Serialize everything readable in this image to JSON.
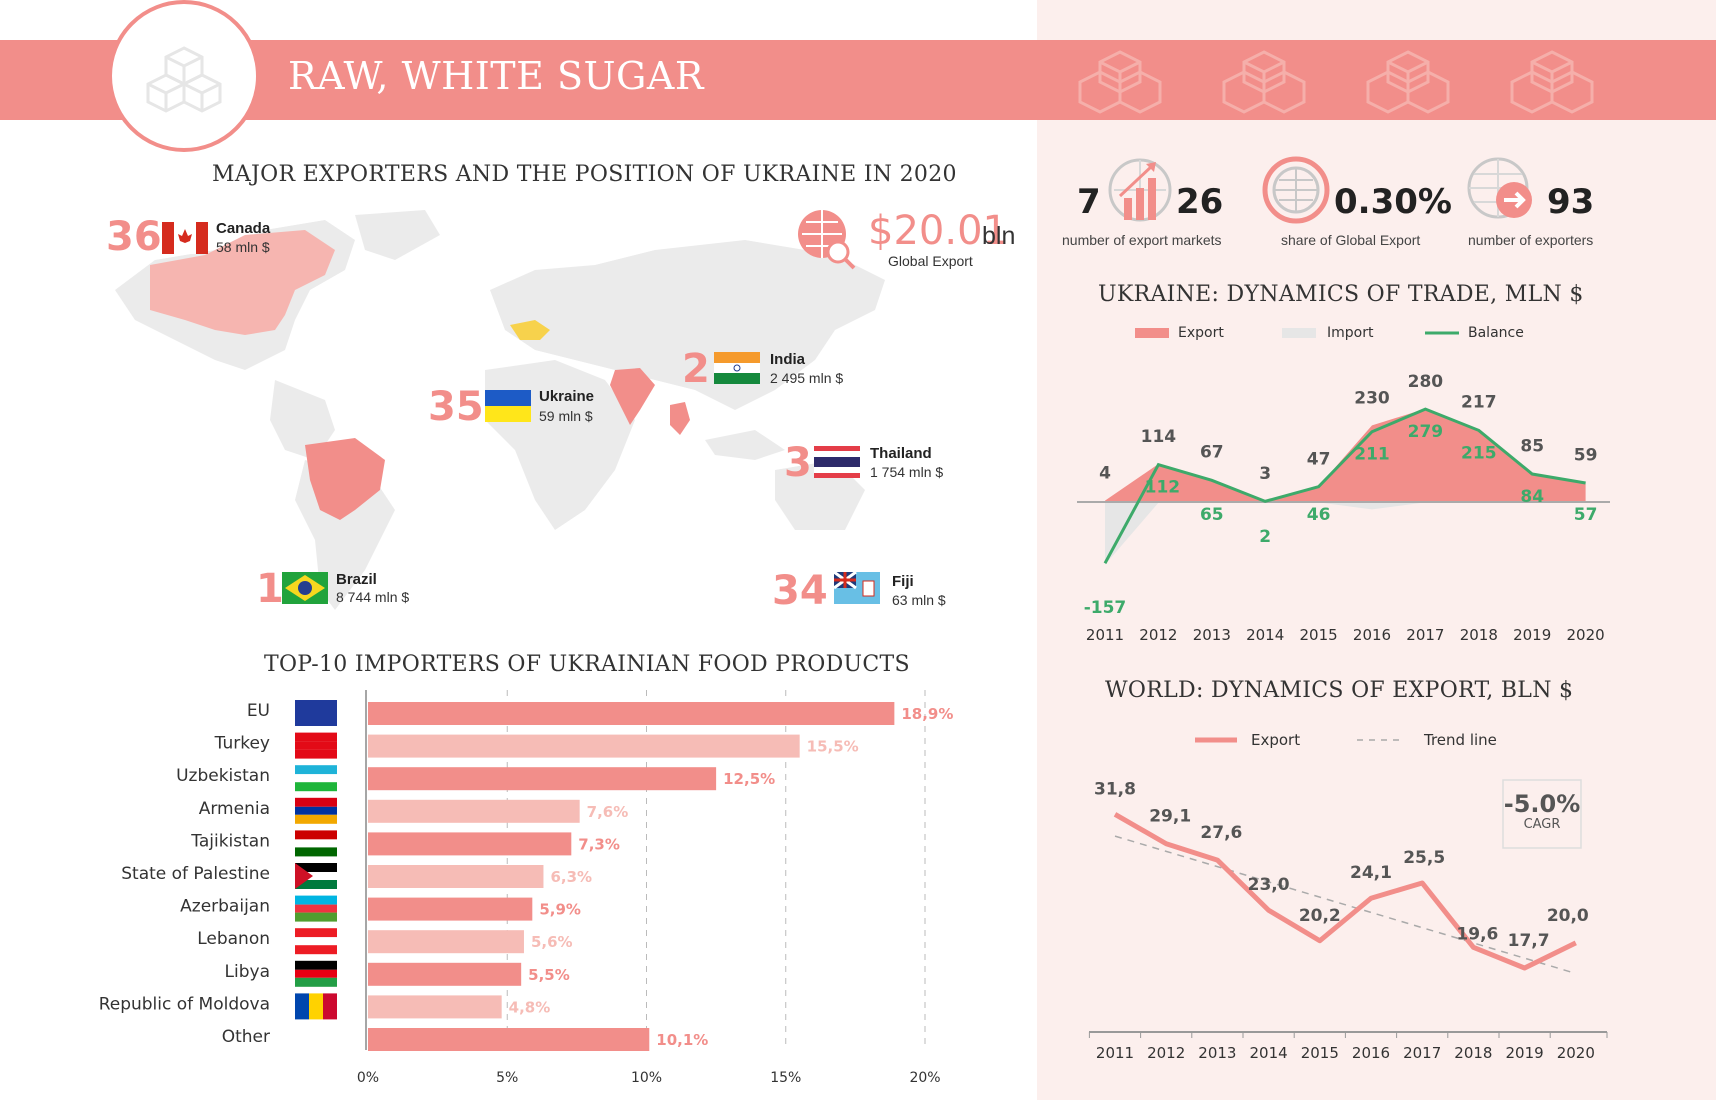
{
  "title": "RAW, WHITE SUGAR",
  "map_section": {
    "title": "MAJOR EXPORTERS AND THE POSITION OF UKRAINE IN 2020",
    "global_export_value": "$20.01",
    "global_export_unit": "bln",
    "global_export_label": "Global Export",
    "countries": [
      {
        "rank": "36",
        "name": "Canada",
        "value": "58  mln $"
      },
      {
        "rank": "2",
        "name": "India",
        "value": "2 495 mln $"
      },
      {
        "rank": "35",
        "name": "Ukraine",
        "value": "59 mln $"
      },
      {
        "rank": "3",
        "name": "Thailand",
        "value": "1 754 mln $"
      },
      {
        "rank": "1",
        "name": "Brazil",
        "value": "8 744 mln $"
      },
      {
        "rank": "34",
        "name": "Fiji",
        "value": "63 mln $"
      }
    ]
  },
  "stats": {
    "markets_left": "7",
    "markets_right": "26",
    "markets_caption": "number of export markets",
    "share": "0.30%",
    "share_caption": "share of Global Export",
    "exporters": "93",
    "exporters_caption": "number of exporters"
  },
  "colors": {
    "accent": "#f28e8a",
    "accent_light": "#f6bcb6",
    "green": "#3daa6a",
    "import_grey": "#e6e6e6"
  },
  "chart_data": [
    {
      "type": "bar",
      "title": "TOP-10 IMPORTERS OF UKRAINIAN FOOD PRODUCTS",
      "categories": [
        "EU",
        "Turkey",
        "Uzbekistan",
        "Armenia",
        "Tajikistan",
        "State of Palestine",
        "Azerbaijan",
        "Lebanon",
        "Libya",
        "Republic of Moldova",
        "Other"
      ],
      "values": [
        18.9,
        15.5,
        12.5,
        7.6,
        7.3,
        6.3,
        5.9,
        5.6,
        5.5,
        4.8,
        10.1
      ],
      "value_labels": [
        "18,9%",
        "15,5%",
        "12,5%",
        "7,6%",
        "7,3%",
        "6,3%",
        "5,9%",
        "5,6%",
        "5,5%",
        "4,8%",
        "10,1%"
      ],
      "xticks": [
        "0%",
        "5%",
        "10%",
        "15%",
        "20%"
      ],
      "xlim": [
        0,
        20
      ],
      "orientation": "horizontal"
    },
    {
      "type": "area",
      "title": "UKRAINE: DYNAMICS OF TRADE, MLN $",
      "x": [
        "2011",
        "2012",
        "2013",
        "2014",
        "2015",
        "2016",
        "2017",
        "2018",
        "2019",
        "2020"
      ],
      "series": [
        {
          "name": "Export",
          "values": [
            4,
            114,
            67,
            3,
            47,
            230,
            280,
            217,
            85,
            59
          ]
        },
        {
          "name": "Import",
          "values": [
            161,
            2,
            2,
            1,
            1,
            19,
            1,
            2,
            1,
            2
          ]
        },
        {
          "name": "Balance",
          "values": [
            -157,
            112,
            65,
            2,
            46,
            211,
            279,
            215,
            84,
            57
          ]
        }
      ]
    },
    {
      "type": "line",
      "title": "WORLD: DYNAMICS OF EXPORT, BLN $",
      "x": [
        "2011",
        "2012",
        "2013",
        "2014",
        "2015",
        "2016",
        "2017",
        "2018",
        "2019",
        "2020"
      ],
      "series": [
        {
          "name": "Export",
          "values": [
            31.8,
            29.1,
            27.6,
            23.0,
            20.2,
            24.1,
            25.5,
            19.6,
            17.7,
            20.0
          ],
          "labels": [
            "31,8",
            "29,1",
            "27,6",
            "23,0",
            "20,2",
            "24,1",
            "25,5",
            "19,6",
            "17,7",
            "20,0"
          ]
        },
        {
          "name": "Trend line",
          "values": [
            29.8,
            28.4,
            27.0,
            25.6,
            24.2,
            22.8,
            21.4,
            20.0,
            18.6,
            17.2
          ]
        }
      ],
      "cagr": "-5.0%",
      "cagr_label": "CAGR"
    }
  ]
}
